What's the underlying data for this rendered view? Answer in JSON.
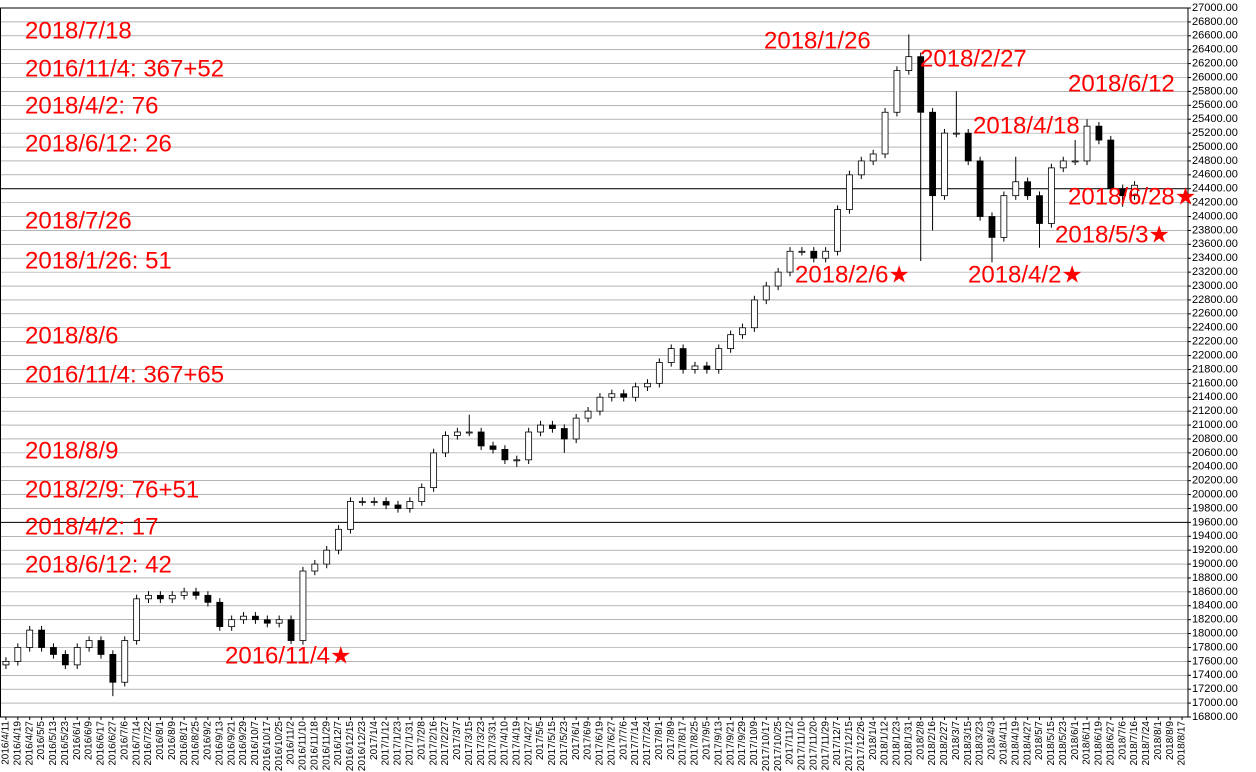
{
  "chart_data": {
    "type": "candlestick",
    "categories": [
      "2016/4/11",
      "2016/4/19",
      "2016/4/27",
      "2016/5/5",
      "2016/5/13",
      "2016/5/23",
      "2016/6/1",
      "2016/6/9",
      "2016/6/17",
      "2016/6/27",
      "2016/7/6",
      "2016/7/14",
      "2016/7/22",
      "2016/8/1",
      "2016/8/9",
      "2016/8/17",
      "2016/8/25",
      "2016/9/2",
      "2016/9/13",
      "2016/9/21",
      "2016/9/29",
      "2016/10/7",
      "2016/10/17",
      "2016/10/25",
      "2016/11/2",
      "2016/11/10",
      "2016/11/18",
      "2016/11/29",
      "2016/12/7",
      "2016/12/15",
      "2016/12/23",
      "2017/1/4",
      "2017/1/12",
      "2017/1/23",
      "2017/1/31",
      "2017/2/8",
      "2017/2/16",
      "2017/2/27",
      "2017/3/7",
      "2017/3/15",
      "2017/3/23",
      "2017/3/31",
      "2017/4/10",
      "2017/4/19",
      "2017/4/27",
      "2017/5/5",
      "2017/5/15",
      "2017/5/23",
      "2017/6/1",
      "2017/6/9",
      "2017/6/19",
      "2017/6/27",
      "2017/7/6",
      "2017/7/14",
      "2017/7/24",
      "2017/8/1",
      "2017/8/9",
      "2017/8/17",
      "2017/8/25",
      "2017/9/5",
      "2017/9/13",
      "2017/9/21",
      "2017/9/29",
      "2017/10/9",
      "2017/10/17",
      "2017/10/25",
      "2017/11/2",
      "2017/11/10",
      "2017/11/20",
      "2017/11/29",
      "2017/12/7",
      "2017/12/15",
      "2017/12/26",
      "2018/1/4",
      "2018/1/12",
      "2018/1/23",
      "2018/1/31",
      "2018/2/8",
      "2018/2/16",
      "2018/2/27",
      "2018/3/7",
      "2018/3/15",
      "2018/3/23",
      "2018/4/3",
      "2018/4/11",
      "2018/4/19",
      "2018/4/27",
      "2018/5/7",
      "2018/5/15",
      "2018/5/23",
      "2018/6/1",
      "2018/6/11",
      "2018/6/19",
      "2018/6/27",
      "2018/7/6",
      "2018/7/16",
      "2018/7/24",
      "2018/8/1",
      "2018/8/9",
      "2018/8/17"
    ],
    "open": [
      17550,
      17600,
      17800,
      18050,
      17800,
      17700,
      17550,
      17800,
      17900,
      17700,
      17300,
      17900,
      18500,
      18550,
      18500,
      18550,
      18600,
      18550,
      18450,
      18100,
      18200,
      18250,
      18200,
      18150,
      18200,
      17900,
      18900,
      19000,
      19200,
      19500,
      19900,
      19900,
      19900,
      19850,
      19800,
      19900,
      20100,
      20600,
      20850,
      20900,
      20900,
      20700,
      20650,
      20500,
      20500,
      20900,
      21000,
      20950,
      20800,
      21100,
      21200,
      21400,
      21450,
      21400,
      21550,
      21600,
      21900,
      22100,
      21800,
      21850,
      21800,
      22100,
      22300,
      22400,
      22800,
      23000,
      23200,
      23500,
      23500,
      23400,
      23500,
      24100,
      24600,
      24800,
      24900,
      25500,
      26100,
      26300,
      25500,
      24300,
      25200,
      25200,
      24800,
      24000,
      23700,
      24300,
      24500,
      24300,
      23900,
      24700,
      24800,
      24800,
      25300,
      25100,
      24400,
      24300,
      null,
      null,
      null,
      null
    ],
    "high": [
      17660,
      17860,
      18110,
      18110,
      17860,
      17760,
      17860,
      17960,
      17960,
      17760,
      17960,
      18560,
      18610,
      18610,
      18610,
      18660,
      18660,
      18610,
      18510,
      18260,
      18310,
      18310,
      18260,
      18260,
      18260,
      18960,
      19060,
      19260,
      19560,
      19960,
      19960,
      19960,
      19960,
      19910,
      19960,
      20160,
      20660,
      20910,
      20960,
      21150,
      20960,
      20760,
      20710,
      20560,
      20960,
      21060,
      21060,
      21010,
      21160,
      21260,
      21460,
      21510,
      21510,
      21610,
      21660,
      21960,
      22160,
      22160,
      21910,
      21910,
      22160,
      22360,
      22460,
      22860,
      23060,
      23260,
      23560,
      23560,
      23560,
      23560,
      24160,
      24660,
      24860,
      24960,
      25560,
      26160,
      26620,
      26360,
      25560,
      25260,
      25800,
      25260,
      24860,
      24060,
      24360,
      24860,
      24560,
      24360,
      24760,
      24860,
      25100,
      25400,
      25360,
      25160,
      24460,
      24510,
      null,
      null,
      null,
      null
    ],
    "low": [
      17490,
      17540,
      17740,
      17740,
      17640,
      17490,
      17490,
      17740,
      17640,
      17100,
      17240,
      17840,
      18440,
      18440,
      18440,
      18490,
      18490,
      18390,
      18040,
      18040,
      18140,
      18140,
      18090,
      18090,
      17850,
      17840,
      18840,
      18940,
      19140,
      19440,
      19840,
      19840,
      19790,
      19740,
      19740,
      19840,
      20040,
      20540,
      20790,
      20840,
      20640,
      20590,
      20440,
      20400,
      20440,
      20840,
      20890,
      20600,
      20740,
      21040,
      21140,
      21340,
      21340,
      21340,
      21490,
      21540,
      21840,
      21740,
      21740,
      21740,
      21740,
      22040,
      22240,
      22340,
      22740,
      22940,
      23140,
      23440,
      23340,
      23340,
      23440,
      24040,
      24540,
      24740,
      24840,
      25440,
      26040,
      23360,
      23800,
      24240,
      25140,
      24740,
      23940,
      23340,
      23640,
      24240,
      24240,
      23550,
      23840,
      24640,
      24740,
      24740,
      25040,
      24340,
      24140,
      24240,
      null,
      null,
      null,
      null
    ],
    "close": [
      17600,
      17800,
      18050,
      17800,
      17700,
      17550,
      17800,
      17900,
      17700,
      17300,
      17900,
      18500,
      18550,
      18500,
      18550,
      18600,
      18550,
      18450,
      18100,
      18200,
      18250,
      18200,
      18150,
      18200,
      17900,
      18900,
      19000,
      19200,
      19500,
      19900,
      19900,
      19900,
      19850,
      19800,
      19900,
      20100,
      20600,
      20850,
      20900,
      20900,
      20700,
      20650,
      20500,
      20500,
      20900,
      21000,
      20950,
      20800,
      21100,
      21200,
      21400,
      21450,
      21400,
      21550,
      21600,
      21900,
      22100,
      21800,
      21850,
      21800,
      22100,
      22300,
      22400,
      22800,
      23000,
      23200,
      23500,
      23500,
      23400,
      23500,
      24100,
      24600,
      24800,
      24900,
      25500,
      26100,
      26300,
      25500,
      24300,
      25200,
      25200,
      24800,
      24000,
      23700,
      24300,
      24500,
      24300,
      23900,
      24700,
      24800,
      24800,
      25300,
      25100,
      24400,
      24300,
      24450,
      null,
      null,
      null,
      null
    ],
    "ylim": [
      16800,
      27000
    ],
    "yticks": [
      {
        "value": 27000,
        "label": "27000.00"
      },
      {
        "value": 26800,
        "label": "26800.00"
      },
      {
        "value": 26600,
        "label": "26600.00"
      },
      {
        "value": 26400,
        "label": "26400.00"
      },
      {
        "value": 26200,
        "label": "26200.00"
      },
      {
        "value": 26000,
        "label": "26000.00"
      },
      {
        "value": 25800,
        "label": "25800.00"
      },
      {
        "value": 25600,
        "label": "25600.00"
      },
      {
        "value": 25400,
        "label": "25400.00"
      },
      {
        "value": 25200,
        "label": "25200.00"
      },
      {
        "value": 25000,
        "label": "25000.00"
      },
      {
        "value": 24800,
        "label": "24800.00"
      },
      {
        "value": 24600,
        "label": "24600.00"
      },
      {
        "value": 24400,
        "label": "24400.00"
      },
      {
        "value": 24200,
        "label": "24200.00"
      },
      {
        "value": 24000,
        "label": "24000.00"
      },
      {
        "value": 23800,
        "label": "23800.00"
      },
      {
        "value": 23600,
        "label": "23600.00"
      },
      {
        "value": 23400,
        "label": "23400.00"
      },
      {
        "value": 23200,
        "label": "23200.00"
      },
      {
        "value": 23000,
        "label": "23000.00"
      },
      {
        "value": 22800,
        "label": "22800.00"
      },
      {
        "value": 22600,
        "label": "22600.00"
      },
      {
        "value": 22400,
        "label": "22400.00"
      },
      {
        "value": 22200,
        "label": "22200.00"
      },
      {
        "value": 22000,
        "label": "22000.00"
      },
      {
        "value": 21800,
        "label": "21800.00"
      },
      {
        "value": 21600,
        "label": "21600.00"
      },
      {
        "value": 21400,
        "label": "21400.00"
      },
      {
        "value": 21200,
        "label": "21200.00"
      },
      {
        "value": 21000,
        "label": "21000.00"
      },
      {
        "value": 20800,
        "label": "20800.00"
      },
      {
        "value": 20600,
        "label": "20600.00"
      },
      {
        "value": 20400,
        "label": "20400.00"
      },
      {
        "value": 20200,
        "label": "20200.00"
      },
      {
        "value": 20000,
        "label": "20000.00"
      },
      {
        "value": 19800,
        "label": "19800.00"
      },
      {
        "value": 19600,
        "label": "19600.00"
      },
      {
        "value": 19400,
        "label": "19400.00"
      },
      {
        "value": 19200,
        "label": "19200.00"
      },
      {
        "value": 19000,
        "label": "19000.00"
      },
      {
        "value": 18800,
        "label": "18800.00"
      },
      {
        "value": 18600,
        "label": "18600.00"
      },
      {
        "value": 18400,
        "label": "18400.00"
      },
      {
        "value": 18200,
        "label": "18200.00"
      },
      {
        "value": 18000,
        "label": "18000.00"
      },
      {
        "value": 17800,
        "label": "17800.00"
      },
      {
        "value": 17600,
        "label": "17600.00"
      },
      {
        "value": 17400,
        "label": "17400.00"
      },
      {
        "value": 17200,
        "label": "17200.00"
      },
      {
        "value": 17000,
        "label": "17000.00"
      },
      {
        "value": 16800,
        "label": "16800.00"
      }
    ],
    "reference_lines": [
      24400,
      19600
    ],
    "grid": true,
    "up_color": "#ffffff",
    "down_color": "#000000",
    "annotation_color": "#ff0000",
    "annotations": [
      "2018/7/18",
      "2016/11/4: 367+52",
      "2018/4/2: 76",
      "2018/6/12: 26",
      "2018/7/26",
      "2018/1/26: 51",
      "2018/8/6",
      "2016/11/4: 367+65",
      "2018/8/9",
      "2018/2/9: 76+51",
      "2018/4/2: 17",
      "2018/6/12: 42",
      "2018/1/26",
      "2018/2/27",
      "2018/6/12",
      "2018/4/18",
      "2018/6/28★",
      "2018/5/3★",
      "2018/2/6★",
      "2018/4/2★",
      "2016/11/4★"
    ]
  }
}
